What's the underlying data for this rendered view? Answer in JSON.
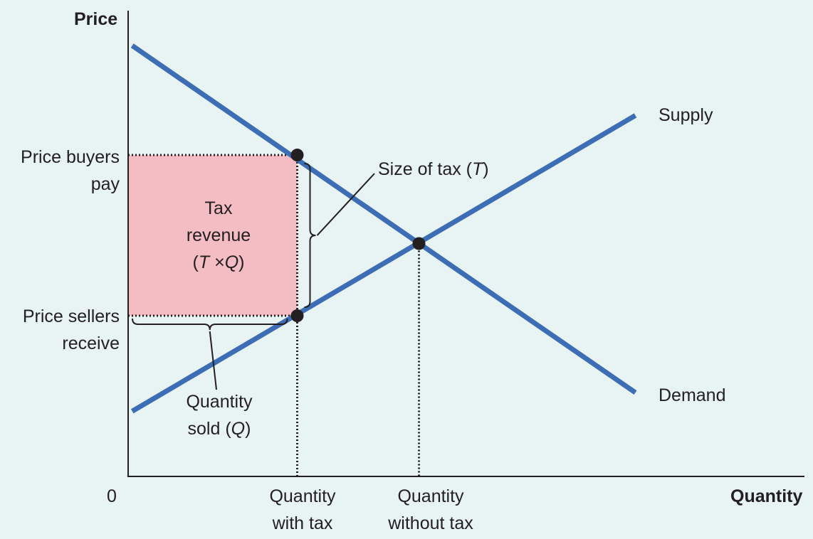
{
  "chart_data": {
    "type": "line",
    "title": "",
    "ylabel": "Price",
    "xlabel": "Quantity",
    "origin_label": "0",
    "xlim": [
      0,
      10
    ],
    "ylim": [
      0,
      10
    ],
    "series": [
      {
        "name": "Supply",
        "color": "#3d6db4",
        "x": [
          0.06,
          7.5
        ],
        "y": [
          1.4,
          7.75
        ]
      },
      {
        "name": "Demand",
        "color": "#3d6db4",
        "x": [
          0.06,
          7.5
        ],
        "y": [
          9.25,
          1.8
        ]
      }
    ],
    "points": [
      {
        "id": "buyers",
        "x": 2.5,
        "y": 6.9
      },
      {
        "id": "sellers",
        "x": 2.5,
        "y": 3.45
      },
      {
        "id": "equilibrium",
        "x": 4.3,
        "y": 5.0
      }
    ],
    "tax_revenue_area": {
      "x0": 0,
      "x1": 2.5,
      "y0": 3.45,
      "y1": 6.9,
      "fill": "#f4bcc3"
    },
    "y_tick_labels": {
      "buyers": [
        "Price buyers",
        "pay"
      ],
      "sellers": [
        "Price sellers",
        "receive"
      ]
    },
    "x_tick_labels": {
      "with_tax": [
        "Quantity",
        "with tax"
      ],
      "without_tax": [
        "Quantity",
        "without tax"
      ]
    },
    "annotations": {
      "revenue": {
        "line1": "Tax",
        "line2": "revenue",
        "line3_open": "(",
        "T": "T",
        "times": "×",
        "Q": "Q",
        "line3_close": ")"
      },
      "tax_size": {
        "prefix": "Size of tax (",
        "T": "T",
        "suffix": ")"
      },
      "quantity_sold": {
        "line1": "Quantity",
        "line2_prefix": "sold (",
        "Q": "Q",
        "line2_suffix": ")"
      }
    }
  }
}
